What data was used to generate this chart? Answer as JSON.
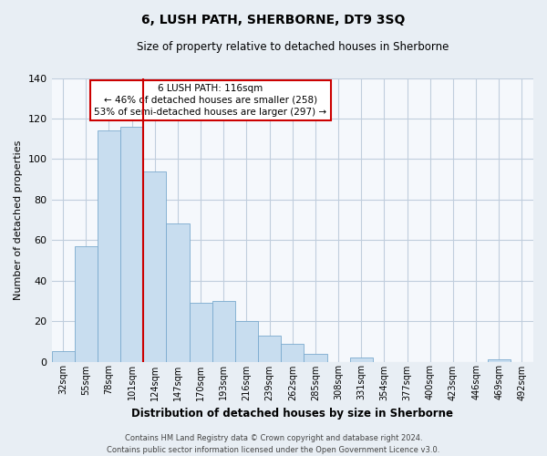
{
  "title": "6, LUSH PATH, SHERBORNE, DT9 3SQ",
  "subtitle": "Size of property relative to detached houses in Sherborne",
  "xlabel": "Distribution of detached houses by size in Sherborne",
  "ylabel": "Number of detached properties",
  "categories": [
    "32sqm",
    "55sqm",
    "78sqm",
    "101sqm",
    "124sqm",
    "147sqm",
    "170sqm",
    "193sqm",
    "216sqm",
    "239sqm",
    "262sqm",
    "285sqm",
    "308sqm",
    "331sqm",
    "354sqm",
    "377sqm",
    "400sqm",
    "423sqm",
    "446sqm",
    "469sqm",
    "492sqm"
  ],
  "values": [
    5,
    57,
    114,
    116,
    94,
    68,
    29,
    30,
    20,
    13,
    9,
    4,
    0,
    2,
    0,
    0,
    0,
    0,
    0,
    1,
    0
  ],
  "bar_color": "#c8ddef",
  "bar_edge_color": "#7aaace",
  "highlight_line_color": "#cc0000",
  "highlight_line_index": 4,
  "annotation_text": "6 LUSH PATH: 116sqm\n← 46% of detached houses are smaller (258)\n53% of semi-detached houses are larger (297) →",
  "annotation_box_facecolor": "white",
  "annotation_box_edgecolor": "#cc0000",
  "ylim": [
    0,
    140
  ],
  "yticks": [
    0,
    20,
    40,
    60,
    80,
    100,
    120,
    140
  ],
  "footer_line1": "Contains HM Land Registry data © Crown copyright and database right 2024.",
  "footer_line2": "Contains public sector information licensed under the Open Government Licence v3.0.",
  "bg_color": "#e8eef4",
  "plot_bg_color": "#f5f8fc",
  "grid_color": "#c0cedd"
}
